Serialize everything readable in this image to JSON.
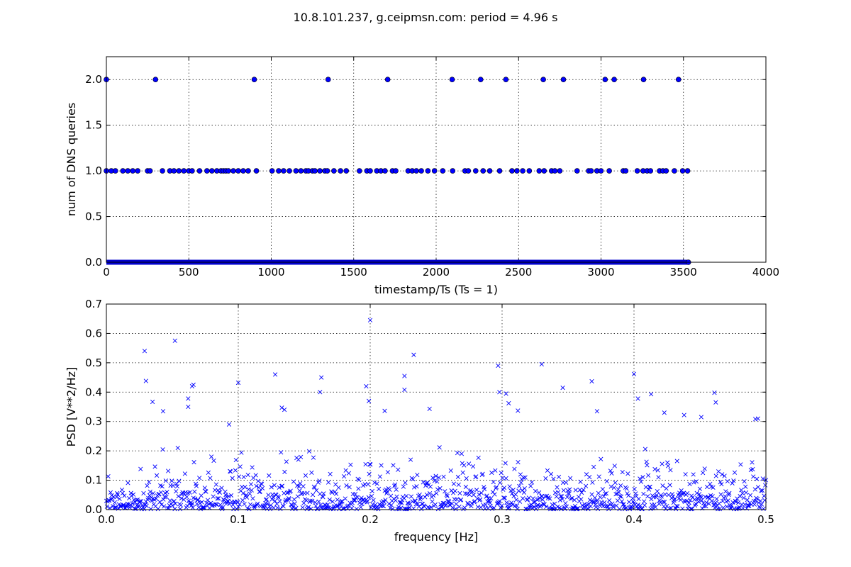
{
  "figure": {
    "suptitle": "10.8.101.237, g.ceipmsn.com: period = 4.96 s"
  },
  "chart_data": [
    {
      "type": "scatter",
      "marker": "filled-circle",
      "color": "#0000ff",
      "xlabel": "timestamp/Ts (Ts = 1)",
      "ylabel": "num of DNS queries",
      "xlim": [
        0,
        4000
      ],
      "ylim": [
        0,
        2.25
      ],
      "grid": true,
      "xticks": [
        "0",
        "500",
        "1000",
        "1500",
        "2000",
        "2500",
        "3000",
        "3500",
        "4000"
      ],
      "yticks": [
        "0.0",
        "0.5",
        "1.0",
        "1.5",
        "2.0"
      ],
      "baseline": {
        "y": 0,
        "x_from": 0,
        "x_to": 3530,
        "note_values": "dense points at 0 for every timestamp"
      },
      "points_y2": [
        0,
        298,
        897,
        1345,
        1706,
        2097,
        2270,
        2423,
        2650,
        2772,
        3025,
        3080,
        3258,
        3470
      ],
      "points_y1": [
        0,
        30,
        55,
        100,
        130,
        160,
        190,
        250,
        265,
        340,
        385,
        410,
        440,
        470,
        500,
        520,
        565,
        610,
        640,
        670,
        695,
        710,
        725,
        740,
        770,
        800,
        830,
        860,
        910,
        1005,
        1045,
        1075,
        1110,
        1150,
        1180,
        1210,
        1225,
        1250,
        1265,
        1295,
        1325,
        1340,
        1380,
        1420,
        1455,
        1535,
        1580,
        1600,
        1640,
        1665,
        1690,
        1735,
        1755,
        1830,
        1855,
        1880,
        1910,
        1950,
        1990,
        2040,
        2100,
        2175,
        2195,
        2240,
        2285,
        2325,
        2385,
        2460,
        2490,
        2525,
        2565,
        2625,
        2655,
        2700,
        2720,
        2750,
        2855,
        2925,
        2940,
        2975,
        3000,
        3050,
        3135,
        3150,
        3220,
        3255,
        3280,
        3300,
        3355,
        3375,
        3395,
        3445,
        3495,
        3525
      ]
    },
    {
      "type": "scatter",
      "marker": "x",
      "color": "#0000ff",
      "xlabel": "frequency [Hz]",
      "ylabel": "PSD [V**2/Hz]",
      "xlim": [
        0,
        0.5
      ],
      "ylim": [
        0,
        0.7
      ],
      "grid": true,
      "xticks": [
        "0.0",
        "0.1",
        "0.2",
        "0.3",
        "0.4",
        "0.5"
      ],
      "yticks": [
        "0.0",
        "0.1",
        "0.2",
        "0.3",
        "0.4",
        "0.5",
        "0.6",
        "0.7"
      ],
      "n_points": 1100,
      "notable_points": [
        [
          0.2,
          0.645
        ],
        [
          0.052,
          0.575
        ],
        [
          0.029,
          0.54
        ],
        [
          0.233,
          0.527
        ],
        [
          0.297,
          0.49
        ],
        [
          0.33,
          0.495
        ],
        [
          0.128,
          0.46
        ],
        [
          0.4,
          0.462
        ],
        [
          0.226,
          0.455
        ],
        [
          0.163,
          0.45
        ],
        [
          0.03,
          0.438
        ],
        [
          0.368,
          0.437
        ],
        [
          0.1,
          0.432
        ],
        [
          0.066,
          0.425
        ],
        [
          0.065,
          0.42
        ],
        [
          0.197,
          0.42
        ],
        [
          0.346,
          0.415
        ],
        [
          0.226,
          0.408
        ],
        [
          0.162,
          0.4
        ],
        [
          0.298,
          0.4
        ],
        [
          0.461,
          0.398
        ],
        [
          0.303,
          0.395
        ],
        [
          0.413,
          0.393
        ],
        [
          0.403,
          0.378
        ],
        [
          0.062,
          0.378
        ],
        [
          0.199,
          0.37
        ],
        [
          0.035,
          0.367
        ],
        [
          0.462,
          0.365
        ],
        [
          0.305,
          0.362
        ],
        [
          0.062,
          0.35
        ],
        [
          0.133,
          0.347
        ],
        [
          0.135,
          0.34
        ],
        [
          0.245,
          0.343
        ],
        [
          0.043,
          0.335
        ],
        [
          0.211,
          0.336
        ],
        [
          0.372,
          0.335
        ],
        [
          0.312,
          0.337
        ],
        [
          0.423,
          0.33
        ],
        [
          0.438,
          0.322
        ],
        [
          0.451,
          0.315
        ],
        [
          0.494,
          0.31
        ],
        [
          0.492,
          0.308
        ],
        [
          0.093,
          0.29
        ]
      ]
    }
  ]
}
